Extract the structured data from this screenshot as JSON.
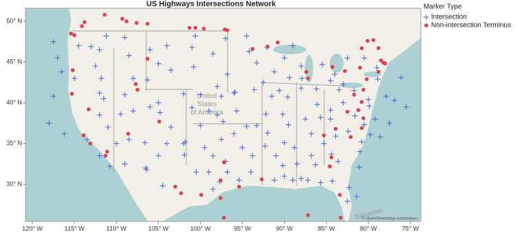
{
  "chart_data": {
    "type": "scatter",
    "title": "US Highways Intersections Network",
    "legend_title": "Marker Type",
    "legend_position": "right",
    "xlim": [
      -120.82,
      -73.77
    ],
    "ylim": [
      25.44,
      51.6
    ],
    "xticks": [
      {
        "value": -120,
        "label": "120° W"
      },
      {
        "value": -115,
        "label": "115° W"
      },
      {
        "value": -110,
        "label": "110° W"
      },
      {
        "value": -105,
        "label": "105° W"
      },
      {
        "value": -100,
        "label": "100° W"
      },
      {
        "value": -95,
        "label": "95° W"
      },
      {
        "value": -90,
        "label": "90° W"
      },
      {
        "value": -85,
        "label": "85° W"
      },
      {
        "value": -80,
        "label": "80° W"
      },
      {
        "value": -75,
        "label": "75° W"
      }
    ],
    "yticks": [
      {
        "value": 30,
        "label": "30° N"
      },
      {
        "value": 35,
        "label": "35° N"
      },
      {
        "value": 40,
        "label": "40° N"
      },
      {
        "value": 45,
        "label": "45° N"
      },
      {
        "value": 50,
        "label": "50° N"
      }
    ],
    "map_labels": {
      "country": [
        "United",
        "States",
        "of America"
      ],
      "island": "Bahamas",
      "attribution": "© OpenStreetMap contributors"
    },
    "series": [
      {
        "name": "Intersection",
        "color": "#4a6fd6",
        "marker": "plus",
        "x": [
          -117.5,
          -117,
          -116.5,
          -117.5,
          -118,
          -116.2,
          -114.5,
          -113,
          -112,
          -112.5,
          -111.8,
          -112,
          -111.5,
          -112,
          -111,
          -113.5,
          -112,
          -110.8,
          -109,
          -110,
          -108.5,
          -106.6,
          -106.5,
          -105,
          -104,
          -103.5,
          -104.8,
          -105,
          -106,
          -108,
          -109,
          -108,
          -106.3,
          -105,
          -108.5,
          -106,
          -104,
          -103.5,
          -101,
          -100.8,
          -98.5,
          -97,
          -96.8,
          -98,
          -100,
          -102,
          -97.5,
          -96,
          -99,
          -101,
          -97.3,
          -98,
          -95.7,
          -100,
          -102,
          -101.8,
          -99.5,
          -97.5,
          -96,
          -95,
          -98.5,
          -97,
          -96.8,
          -99,
          -100.5,
          -101.9,
          -98.5,
          -97.7,
          -95.4,
          -94,
          -93.8,
          -92.3,
          -91,
          -90.2,
          -91.2,
          -90,
          -89,
          -88,
          -88.5,
          -88.8,
          -90,
          -92,
          -93.3,
          -94.5,
          -92.2,
          -90.2,
          -89.5,
          -91.5,
          -93.6,
          -95.9,
          -92.5,
          -90.6,
          -89.6,
          -88,
          -89.4,
          -91.2,
          -93.3,
          -94.2,
          -92.1,
          -90,
          -88,
          -87.9,
          -86.2,
          -86.1,
          -87.5,
          -85.7,
          -84.5,
          -84.5,
          -83,
          -83.5,
          -84.5,
          -83,
          -85.5,
          -84,
          -81.7,
          -80,
          -81.6,
          -80.5,
          -82.4,
          -83.9,
          -86.8,
          -85.3,
          -86.8,
          -86.3,
          -84.4,
          -83.6,
          -81.1,
          -82.3,
          -81.4,
          -82.5,
          -84.3,
          -85.7,
          -87.2,
          -81,
          -80.8,
          -79.8,
          -78.6,
          -77.5,
          -79.9,
          -77.9,
          -76.9,
          -78.9,
          -76.1,
          -79,
          -80.5,
          -82.5,
          -79.2,
          -75.5,
          -104.5,
          -106.4,
          -109.5,
          -115,
          -109,
          -111.2,
          -94.5,
          -100.6,
          -89
        ],
        "y": [
          47.5,
          45.5,
          43.8,
          40.8,
          37.5,
          36.2,
          47,
          46.9,
          46.5,
          44.5,
          43,
          41.2,
          40.5,
          38.5,
          37,
          35.5,
          33.5,
          32.2,
          32.5,
          35,
          35.5,
          35.1,
          32,
          33.5,
          35,
          37,
          38.8,
          40,
          39.5,
          39,
          41,
          43,
          42.8,
          44.8,
          45.8,
          46.5,
          47,
          44,
          46.8,
          44.4,
          46,
          47.9,
          43.5,
          42,
          41,
          41.1,
          40.8,
          41.2,
          39,
          39.4,
          37.7,
          38.5,
          39,
          37.2,
          35,
          35.2,
          34.5,
          35.5,
          36.2,
          34.5,
          33.5,
          32.8,
          31.5,
          31.5,
          31.5,
          33.6,
          29.4,
          30.3,
          30.5,
          31.5,
          33.5,
          34.7,
          33.5,
          32.3,
          30.5,
          31,
          30.5,
          30.7,
          32.5,
          34.5,
          35.1,
          36.3,
          37.2,
          37.1,
          38.6,
          38.6,
          37.3,
          40.8,
          41.6,
          41.3,
          42.5,
          41.5,
          40.7,
          41.8,
          43.1,
          43.8,
          44.9,
          46.3,
          46.8,
          45.5,
          44.5,
          43,
          41.7,
          39.8,
          38,
          38.2,
          38,
          39.1,
          40,
          41.6,
          42.7,
          42.3,
          44.7,
          43.5,
          41.5,
          40.4,
          38.4,
          37.3,
          36.5,
          35.9,
          36.2,
          35,
          33.5,
          32.4,
          33.7,
          32.8,
          32.1,
          29.6,
          28.5,
          27.9,
          30.4,
          30.2,
          30.5,
          34,
          35.2,
          36.1,
          35.8,
          37.5,
          39.6,
          40.8,
          40.3,
          42.9,
          43.1,
          44.3,
          45.5,
          45.5,
          38,
          39.5,
          29.8,
          31.8,
          38.6,
          43,
          48,
          48.2,
          48.2,
          48.2,
          47
        ]
      },
      {
        "name": "Non-intersection Terminus",
        "color": "#d9434f",
        "marker": "circle",
        "x": [
          -111.4,
          -109.3,
          -108.8,
          -107.6,
          -106.3,
          -101.3,
          -100.6,
          -99.6,
          -97.1,
          -96.8,
          -114.1,
          -113.8,
          -115,
          -115.4,
          -115.2,
          -115.3,
          -113.3,
          -113.9,
          -113.1,
          -111.1,
          -111.3,
          -108.6,
          -106.3,
          -107.7,
          -107.5,
          -104.9,
          -103,
          -102.3,
          -99.9,
          -97.6,
          -97.2,
          -97.6,
          -95.4,
          -92.7,
          -97.2,
          -87.2,
          -83.3,
          -93.8,
          -92,
          -90.8,
          -87.4,
          -87.2,
          -84.3,
          -82.8,
          -81,
          -80.8,
          -80.1,
          -79.4,
          -78.8,
          -78.5,
          -78,
          -78.8,
          -80.2,
          -80.6,
          -80.8,
          -81.2,
          -80.6,
          -80.8,
          -82.1,
          -83.9,
          -85.3,
          -84.4,
          -82.5,
          -81.7,
          -84.6,
          -83.4,
          -78.2
        ],
        "y": [
          50.8,
          50.3,
          50,
          49.8,
          49.7,
          49.2,
          49.2,
          49.1,
          49,
          48.9,
          49.4,
          49.9,
          48.3,
          48.5,
          44,
          41.1,
          39.2,
          36,
          35,
          34,
          33.5,
          36.2,
          45.4,
          42.3,
          41.6,
          37.7,
          29.7,
          28.9,
          28.7,
          28.3,
          32.7,
          30.5,
          29.7,
          30.6,
          25.9,
          26.2,
          25.9,
          46.6,
          46.9,
          47.4,
          43.8,
          43,
          44.4,
          43.9,
          44.3,
          46.7,
          47.6,
          47.7,
          46.7,
          45.2,
          44.8,
          43.8,
          42.9,
          41.6,
          40.1,
          39.1,
          38.1,
          36.9,
          35.8,
          36.8,
          36,
          33.3,
          38.9,
          41,
          32.2,
          28.7,
          44.9
        ]
      }
    ]
  }
}
